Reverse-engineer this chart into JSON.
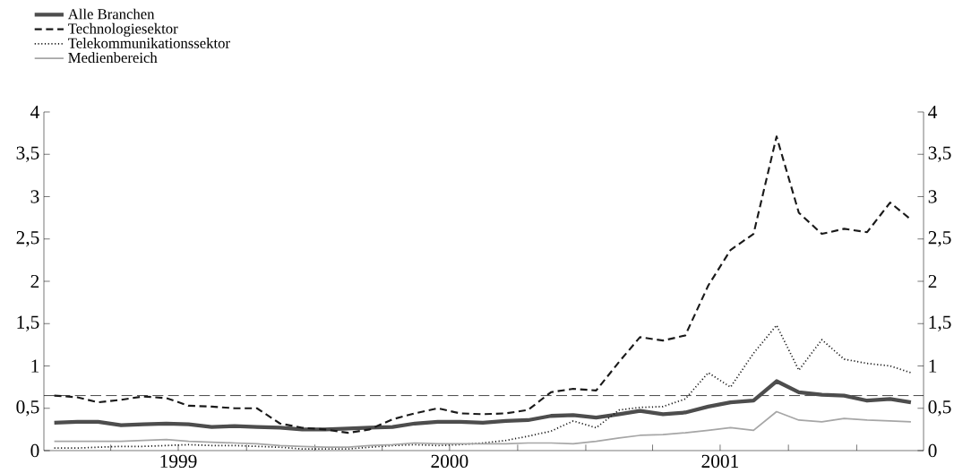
{
  "chart_data": {
    "type": "line",
    "x": [
      "1999-01-15",
      "1999-02-15",
      "1999-03-15",
      "1999-04-15",
      "1999-05-15",
      "1999-06-15",
      "1999-07-15",
      "1999-08-15",
      "1999-09-15",
      "1999-10-15",
      "1999-11-15",
      "1999-12-15",
      "2000-01-15",
      "2000-02-15",
      "2000-03-15",
      "2000-04-15",
      "2000-05-15",
      "2000-06-15",
      "2000-07-15",
      "2000-08-15",
      "2000-09-15",
      "2000-10-15",
      "2000-11-15",
      "2000-12-15",
      "2001-01-15",
      "2001-02-15",
      "2001-03-15",
      "2001-04-15",
      "2001-05-15",
      "2001-06-15",
      "2001-07-15",
      "2001-08-15",
      "2001-09-15",
      "2001-10-15",
      "2001-11-15",
      "2001-12-15",
      "2002-01-15",
      "2002-02-15",
      "2002-03-15"
    ],
    "series": [
      {
        "name": "Alle Branchen",
        "color": "#4d4d4d",
        "line_style": "solid",
        "values": [
          0.33,
          0.34,
          0.34,
          0.3,
          0.31,
          0.32,
          0.31,
          0.28,
          0.29,
          0.28,
          0.27,
          0.25,
          0.25,
          0.26,
          0.27,
          0.28,
          0.32,
          0.34,
          0.34,
          0.33,
          0.35,
          0.36,
          0.41,
          0.42,
          0.39,
          0.43,
          0.47,
          0.43,
          0.45,
          0.52,
          0.57,
          0.59,
          0.82,
          0.69,
          0.66,
          0.65,
          0.59,
          0.61,
          0.57
        ]
      },
      {
        "name": "Technologiesektor",
        "color": "#1a1a1a",
        "line_style": "dashed",
        "values": [
          0.65,
          0.63,
          0.57,
          0.6,
          0.64,
          0.62,
          0.53,
          0.52,
          0.5,
          0.5,
          0.32,
          0.27,
          0.25,
          0.21,
          0.25,
          0.37,
          0.44,
          0.5,
          0.44,
          0.43,
          0.44,
          0.48,
          0.69,
          0.73,
          0.71,
          1.05,
          1.34,
          1.3,
          1.36,
          1.95,
          2.37,
          2.56,
          3.71,
          2.81,
          2.56,
          2.62,
          2.58,
          2.93,
          2.73
        ]
      },
      {
        "name": "Telekommunikationssektor",
        "color": "#1a1a1a",
        "line_style": "dotted",
        "values": [
          0.03,
          0.03,
          0.04,
          0.05,
          0.05,
          0.06,
          0.07,
          0.06,
          0.06,
          0.05,
          0.04,
          0.02,
          0.02,
          0.02,
          0.04,
          0.06,
          0.07,
          0.06,
          0.07,
          0.09,
          0.12,
          0.17,
          0.23,
          0.35,
          0.27,
          0.48,
          0.51,
          0.52,
          0.61,
          0.92,
          0.75,
          1.15,
          1.48,
          0.95,
          1.31,
          1.08,
          1.03,
          1.0,
          0.92
        ]
      },
      {
        "name": "Medienbereich",
        "color": "#a6a6a6",
        "line_style": "solid",
        "values": [
          0.11,
          0.11,
          0.11,
          0.11,
          0.12,
          0.13,
          0.11,
          0.1,
          0.09,
          0.08,
          0.06,
          0.05,
          0.04,
          0.04,
          0.06,
          0.07,
          0.09,
          0.08,
          0.08,
          0.08,
          0.08,
          0.09,
          0.09,
          0.08,
          0.11,
          0.15,
          0.18,
          0.19,
          0.21,
          0.24,
          0.27,
          0.24,
          0.46,
          0.36,
          0.34,
          0.38,
          0.36,
          0.35,
          0.34
        ]
      }
    ],
    "xlim": [
      "1999-01-01",
      "2002-04-01"
    ],
    "xticks": [
      {
        "value": "1999-04-01",
        "label": null
      },
      {
        "value": "1999-07-01",
        "label": "1999"
      },
      {
        "value": "1999-10-01",
        "label": null
      },
      {
        "value": "2000-01-01",
        "label": null
      },
      {
        "value": "2000-04-01",
        "label": null
      },
      {
        "value": "2000-07-01",
        "label": "2000"
      },
      {
        "value": "2000-10-01",
        "label": null
      },
      {
        "value": "2001-01-01",
        "label": null
      },
      {
        "value": "2001-04-01",
        "label": null
      },
      {
        "value": "2001-07-01",
        "label": "2001"
      },
      {
        "value": "2001-10-01",
        "label": null
      },
      {
        "value": "2002-01-01",
        "label": null
      }
    ],
    "ylim": [
      0,
      4
    ],
    "yticks": [
      0,
      {
        "value": 0.5,
        "label": "0,5"
      },
      1,
      {
        "value": 1.5,
        "label": "1,5"
      },
      2,
      {
        "value": 2.5,
        "label": "2,5"
      },
      3,
      {
        "value": 3.5,
        "label": "3,5"
      },
      4
    ],
    "y2lim": [
      0,
      4
    ],
    "y2ticks": [
      0,
      {
        "value": 0.5,
        "label": "0,5"
      },
      1,
      {
        "value": 1.5,
        "label": "1,5"
      },
      2,
      {
        "value": 2.5,
        "label": "2,5"
      },
      3,
      {
        "value": 3.5,
        "label": "3,5"
      },
      4
    ],
    "ref_lines": [
      {
        "axis": "y",
        "value": 0.65,
        "color": "#1a1a1a",
        "line_style": "dashed"
      }
    ],
    "legend": "top left",
    "grid": false,
    "marker": "none"
  }
}
